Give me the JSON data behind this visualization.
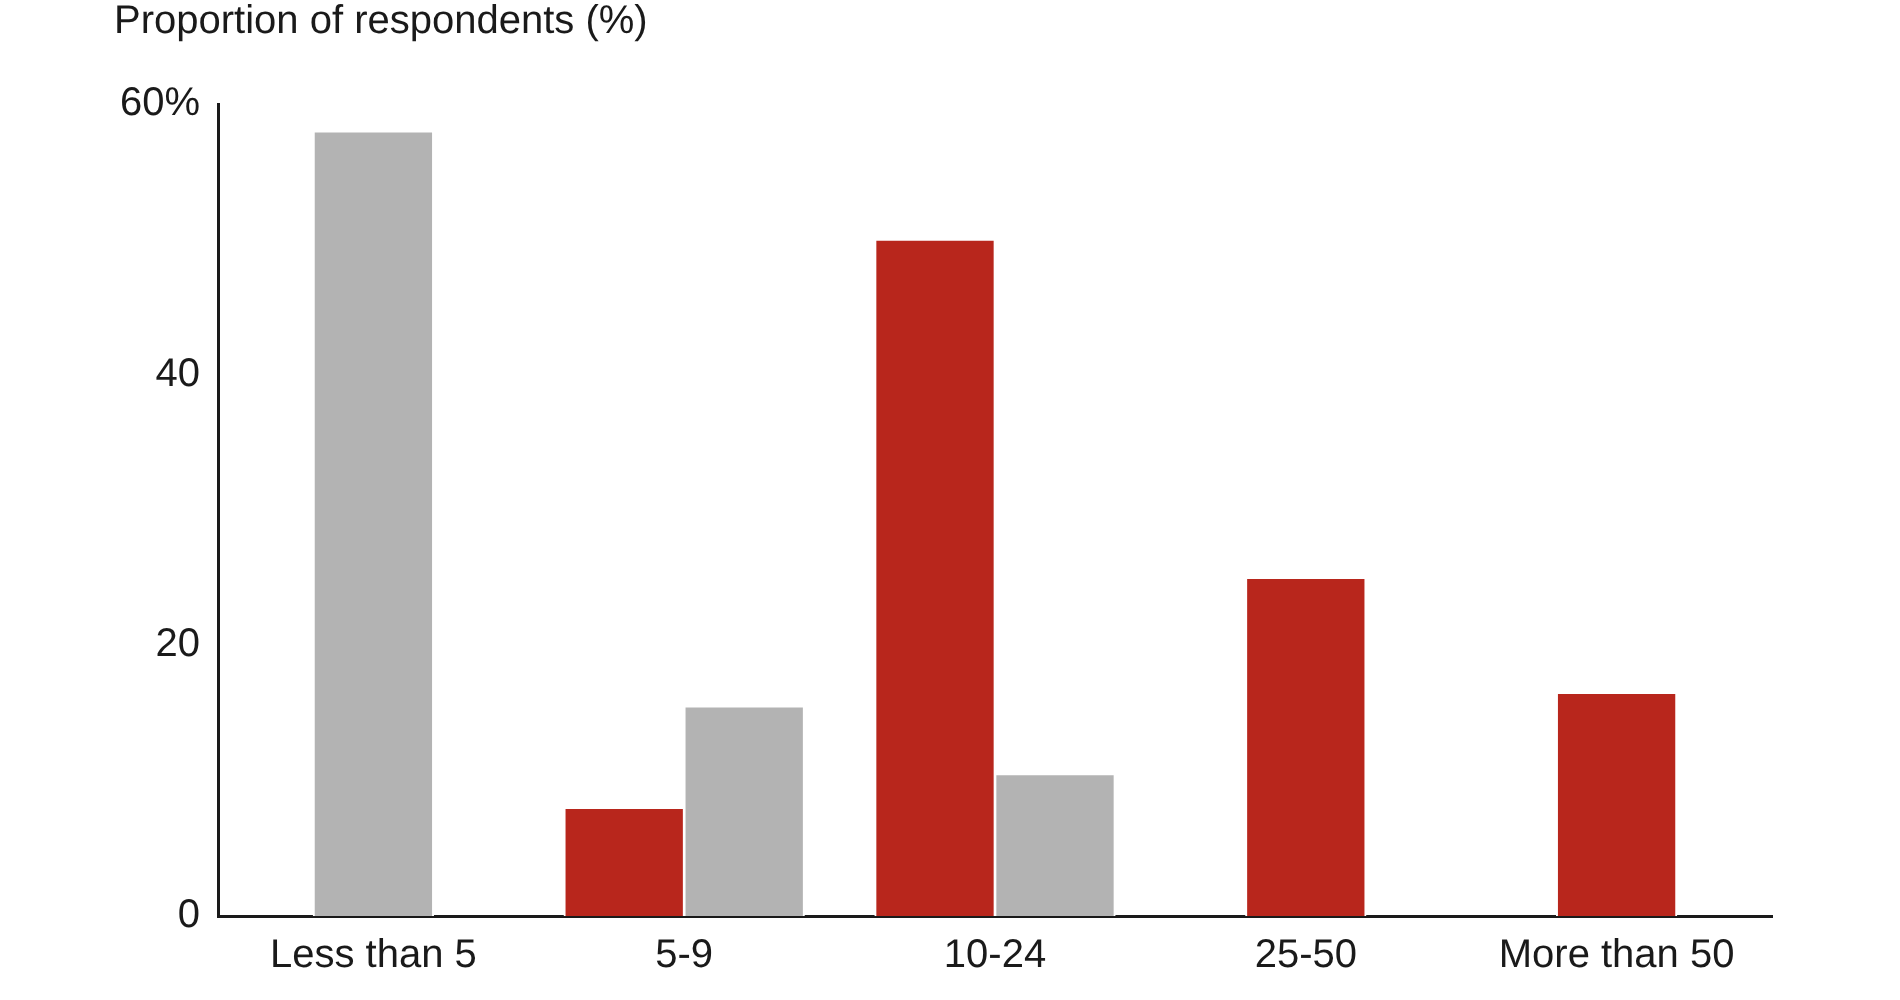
{
  "chart_data": {
    "type": "bar",
    "ylabel": "Proportion of respondents (%)",
    "categories": [
      "Less than 5",
      "5-9",
      "10-24",
      "25-50",
      "More than 50"
    ],
    "series": [
      {
        "color": "#b8261c",
        "values": [
          null,
          8,
          50,
          25,
          16.5
        ]
      },
      {
        "color": "#b3b3b3",
        "values": [
          58,
          15.5,
          10.5,
          null,
          null
        ]
      }
    ],
    "ylim": [
      0,
      60
    ],
    "yticks": [
      0,
      20,
      40,
      {
        "value": 60,
        "label": "60%"
      }
    ],
    "grid": false,
    "legend": false
  }
}
